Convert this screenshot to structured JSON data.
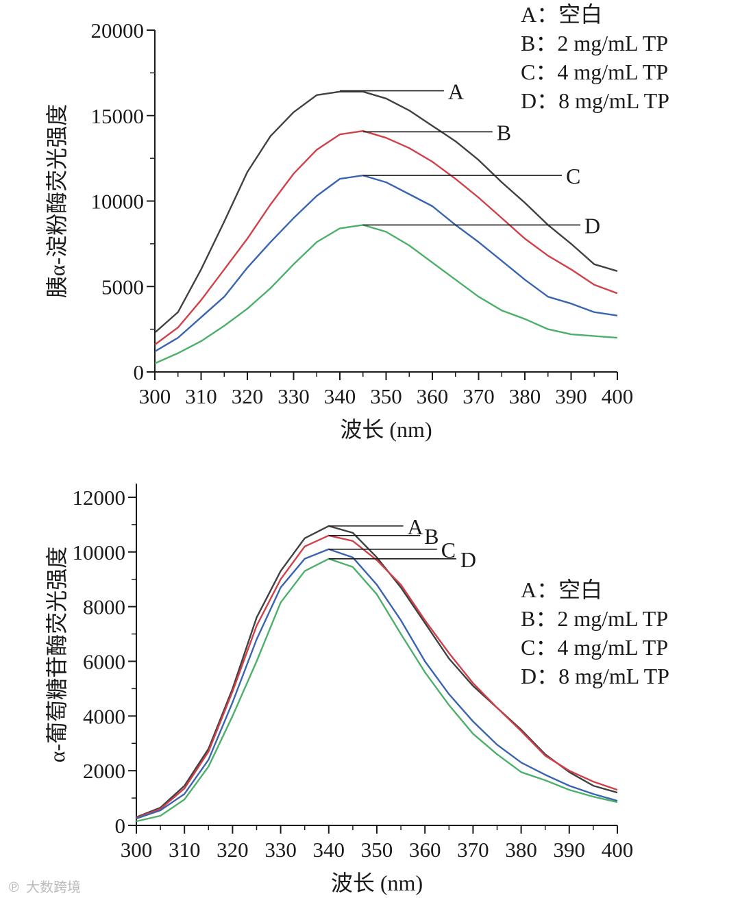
{
  "chart_data": [
    {
      "type": "line",
      "title": "",
      "xlabel": "波长 (nm)",
      "ylabel": "胰α-淀粉酶荧光强度",
      "xlim": [
        300,
        400
      ],
      "ylim": [
        0,
        20000
      ],
      "x_ticks": [
        300,
        310,
        320,
        330,
        340,
        350,
        360,
        370,
        380,
        390,
        400
      ],
      "y_ticks": [
        0,
        5000,
        10000,
        15000,
        20000
      ],
      "x_tick_labels": [
        "300",
        "310",
        "320",
        "330",
        "340",
        "350",
        "360",
        "370",
        "380",
        "390",
        "400"
      ],
      "y_tick_labels": [
        "0",
        "5000",
        "10000",
        "15000",
        "20000"
      ],
      "legend": [
        "A：空白",
        "B：2 mg/mL TP",
        "C：4 mg/mL TP",
        "D：8 mg/mL TP"
      ],
      "legend_position": "top-right",
      "x": [
        300,
        305,
        310,
        315,
        320,
        325,
        330,
        335,
        340,
        345,
        350,
        355,
        360,
        365,
        370,
        375,
        380,
        385,
        390,
        395,
        400
      ],
      "series": [
        {
          "name": "A",
          "color": "#404040",
          "values": [
            2300,
            3500,
            6000,
            8800,
            11700,
            13800,
            15200,
            16200,
            16400,
            16400,
            16000,
            15300,
            14400,
            13500,
            12400,
            11100,
            9900,
            8600,
            7500,
            6300,
            5900
          ]
        },
        {
          "name": "B",
          "color": "#d0404a",
          "values": [
            1600,
            2600,
            4200,
            6000,
            7800,
            9800,
            11600,
            13000,
            13900,
            14100,
            13700,
            13100,
            12300,
            11300,
            10200,
            9000,
            7800,
            6800,
            6000,
            5100,
            4600
          ]
        },
        {
          "name": "C",
          "color": "#3a64b0",
          "values": [
            1200,
            2000,
            3200,
            4400,
            6100,
            7600,
            9000,
            10300,
            11300,
            11500,
            11100,
            10400,
            9700,
            8600,
            7600,
            6500,
            5400,
            4400,
            4000,
            3500,
            3300
          ]
        },
        {
          "name": "D",
          "color": "#4caf6a",
          "values": [
            500,
            1100,
            1800,
            2700,
            3700,
            4900,
            6300,
            7600,
            8400,
            8600,
            8200,
            7400,
            6400,
            5400,
            4400,
            3600,
            3100,
            2500,
            2200,
            2100,
            2000
          ]
        }
      ],
      "callouts": [
        {
          "label": "A",
          "x_from": 340,
          "x_to": 362.5,
          "y": 16450
        },
        {
          "label": "B",
          "x_from": 345,
          "x_to": 373,
          "y": 14050
        },
        {
          "label": "C",
          "x_from": 345,
          "x_to": 388,
          "y": 11500
        },
        {
          "label": "D",
          "x_from": 345,
          "x_to": 392,
          "y": 8600
        }
      ]
    },
    {
      "type": "line",
      "title": "",
      "xlabel": "波长 (nm)",
      "ylabel": "α-葡萄糖苷酶荧光强度",
      "xlim": [
        300,
        400
      ],
      "ylim": [
        0,
        12500
      ],
      "x_ticks": [
        300,
        310,
        320,
        330,
        340,
        350,
        360,
        370,
        380,
        390,
        400
      ],
      "y_ticks": [
        0,
        2000,
        4000,
        6000,
        8000,
        10000,
        12000
      ],
      "x_tick_labels": [
        "300",
        "310",
        "320",
        "330",
        "340",
        "350",
        "360",
        "370",
        "380",
        "390",
        "400"
      ],
      "y_tick_labels": [
        "0",
        "2000",
        "4000",
        "6000",
        "8000",
        "10000",
        "12000"
      ],
      "legend": [
        "A：空白",
        "B：2 mg/mL TP",
        "C：4 mg/mL TP",
        "D：8 mg/mL TP"
      ],
      "legend_position": "middle-right",
      "x": [
        300,
        305,
        310,
        315,
        320,
        325,
        330,
        335,
        340,
        345,
        350,
        355,
        360,
        365,
        370,
        375,
        380,
        385,
        390,
        395,
        400
      ],
      "series": [
        {
          "name": "A",
          "color": "#404040",
          "values": [
            300,
            650,
            1450,
            2800,
            5000,
            7600,
            9300,
            10500,
            10950,
            10700,
            9800,
            8700,
            7400,
            6100,
            5100,
            4300,
            3500,
            2600,
            1950,
            1450,
            1200
          ]
        },
        {
          "name": "B",
          "color": "#d0404a",
          "values": [
            280,
            600,
            1350,
            2700,
            4900,
            7300,
            9000,
            10200,
            10600,
            10400,
            9700,
            8800,
            7500,
            6300,
            5200,
            4300,
            3450,
            2550,
            2000,
            1600,
            1300
          ]
        },
        {
          "name": "C",
          "color": "#3a64b0",
          "values": [
            250,
            550,
            1150,
            2400,
            4500,
            6800,
            8700,
            9750,
            10100,
            9800,
            8800,
            7500,
            6000,
            4800,
            3800,
            2950,
            2300,
            1850,
            1450,
            1150,
            900
          ]
        },
        {
          "name": "D",
          "color": "#4caf6a",
          "values": [
            150,
            350,
            950,
            2150,
            4000,
            6000,
            8150,
            9300,
            9750,
            9450,
            8450,
            7000,
            5600,
            4400,
            3350,
            2600,
            1950,
            1650,
            1300,
            1050,
            850
          ]
        }
      ],
      "callouts": [
        {
          "label": "A",
          "x_from": 340,
          "x_to": 355.5,
          "y": 10950
        },
        {
          "label": "B",
          "x_from": 340,
          "x_to": 359,
          "y": 10600
        },
        {
          "label": "C",
          "x_from": 340,
          "x_to": 362.5,
          "y": 10100
        },
        {
          "label": "D",
          "x_from": 340,
          "x_to": 366.5,
          "y": 9750
        }
      ]
    }
  ],
  "watermark": "大数跨境"
}
